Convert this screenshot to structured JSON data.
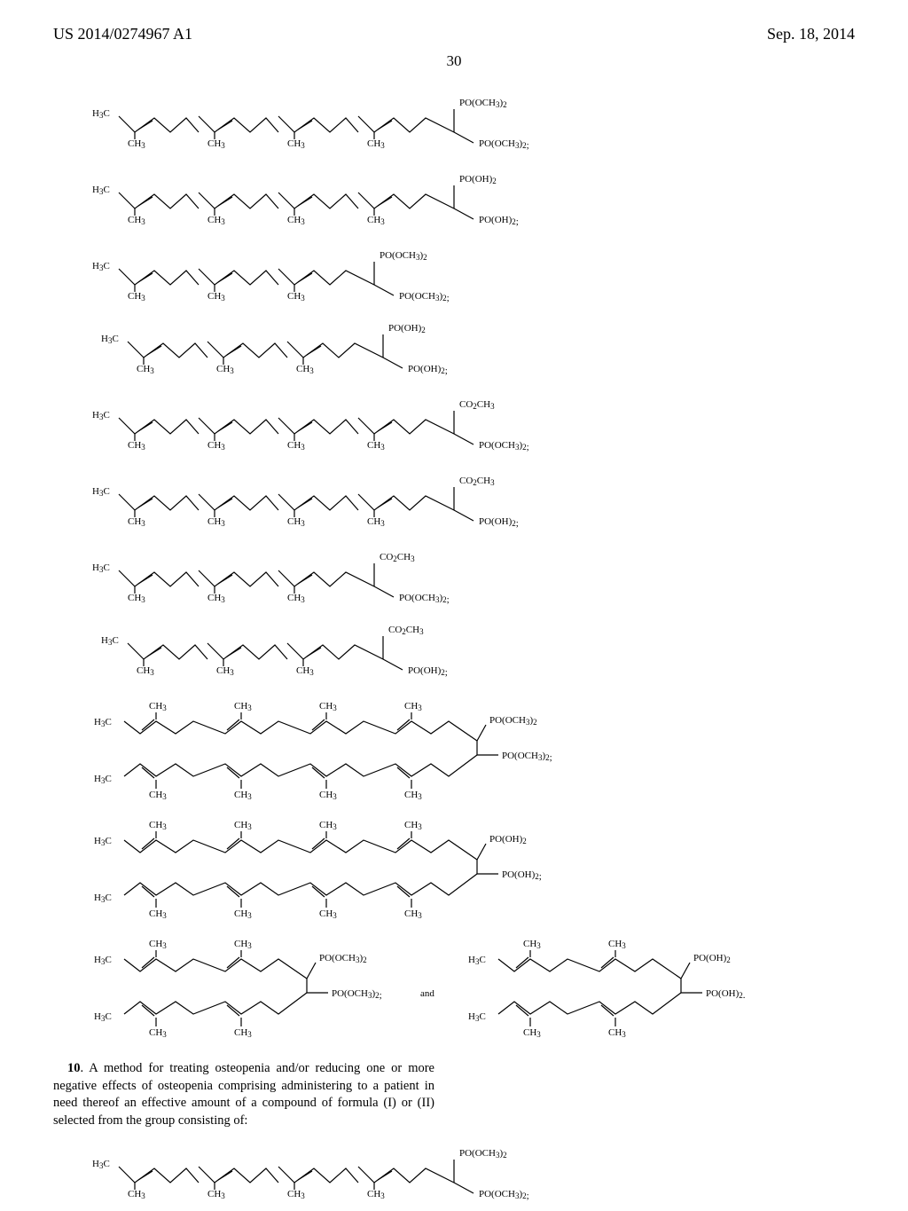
{
  "header": {
    "pub_number": "US 2014/0274967 A1",
    "pub_date": "Sep. 18, 2014",
    "page_number": "30"
  },
  "colors": {
    "text": "#000000",
    "background": "#ffffff",
    "bond": "#000000"
  },
  "styling": {
    "stroke_width": 1.2,
    "label_font_size": 11,
    "header_font_size": 18
  },
  "structures": [
    {
      "row": 1,
      "left": {
        "isoprene_units": 4,
        "top_group": "PO(OCH3)2",
        "end_group": "PO(OCH3)2;"
      },
      "right": null
    },
    {
      "row": 2,
      "left": {
        "isoprene_units": 4,
        "top_group": "PO(OH)2",
        "end_group": "PO(OH)2;"
      },
      "right": null
    },
    {
      "row": 3,
      "left": {
        "isoprene_units": 3,
        "top_group": "PO(OCH3)2",
        "end_group": "PO(OCH3)2;"
      },
      "right": {
        "isoprene_units": 3,
        "top_group": "PO(OH)2",
        "end_group": "PO(OH)2;"
      }
    },
    {
      "row": 4,
      "left": {
        "isoprene_units": 4,
        "top_group": "CO2CH3",
        "end_group": "PO(OCH3)2;"
      },
      "right": null
    },
    {
      "row": 5,
      "left": {
        "isoprene_units": 4,
        "top_group": "CO2CH3",
        "end_group": "PO(OH)2;"
      },
      "right": null
    },
    {
      "row": 6,
      "left": {
        "isoprene_units": 3,
        "top_group": "CO2CH3",
        "end_group": "PO(OCH3)2;"
      },
      "right": {
        "isoprene_units": 3,
        "top_group": "CO2CH3",
        "end_group": "PO(OH)2;"
      }
    },
    {
      "row": 7,
      "left": {
        "branched_units": 4,
        "top_group": "PO(OCH3)2",
        "end_group": "PO(OCH3)2;"
      },
      "right": null
    },
    {
      "row": 8,
      "left": {
        "branched_units": 4,
        "top_group": "PO(OH)2",
        "end_group": "PO(OH)2;"
      },
      "right": null
    },
    {
      "row": 9,
      "left": {
        "branched_units": 2,
        "top_group": "PO(OCH3)2",
        "end_group": "PO(OCH3)2;",
        "suffix": "and"
      },
      "right": {
        "branched_units": 2,
        "top_group": "PO(OH)2",
        "end_group": "PO(OH)2."
      }
    }
  ],
  "claim": {
    "number": "10",
    "text": ". A method for treating osteopenia and/or reducing one or more negative effects of osteopenia comprising administering to a patient in need thereof an effective amount of a compound of formula (I) or (II) selected from the group consisting of:"
  },
  "bottom_structure": {
    "isoprene_units": 4,
    "top_group": "PO(OCH3)2",
    "end_group": "PO(OCH3)2;"
  }
}
